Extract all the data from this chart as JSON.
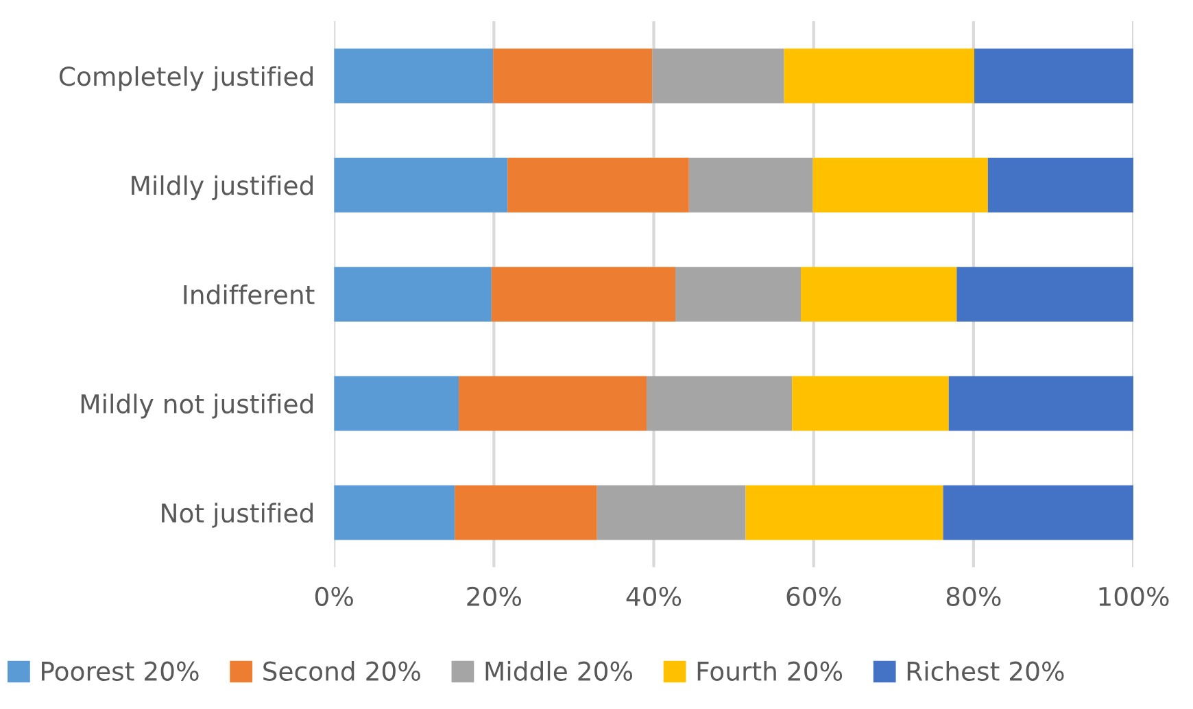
{
  "chart_data": {
    "type": "bar",
    "orientation": "horizontal",
    "stacked": true,
    "categories": [
      "Completely justified",
      "Mildly justified",
      "Indifferent",
      "Mildly not justified",
      "Not justified"
    ],
    "series": [
      {
        "name": "Poorest 20%",
        "color": "#5b9bd5",
        "values": [
          19.9,
          21.7,
          19.7,
          15.6,
          15.1
        ]
      },
      {
        "name": "Second 20%",
        "color": "#ed7d31",
        "values": [
          19.9,
          22.7,
          23.0,
          23.5,
          17.8
        ]
      },
      {
        "name": "Middle 20%",
        "color": "#a5a5a5",
        "values": [
          16.5,
          15.5,
          15.7,
          18.2,
          18.6
        ]
      },
      {
        "name": "Fourth 20%",
        "color": "#ffc000",
        "values": [
          23.8,
          21.9,
          19.5,
          19.6,
          24.7
        ]
      },
      {
        "name": "Richest 20%",
        "color": "#4472c4",
        "values": [
          19.9,
          18.2,
          22.1,
          23.1,
          23.8
        ]
      }
    ],
    "xlim": [
      0,
      100
    ],
    "xticks": [
      {
        "value": 0,
        "label": "0%"
      },
      {
        "value": 20,
        "label": "20%"
      },
      {
        "value": 40,
        "label": "40%"
      },
      {
        "value": 60,
        "label": "60%"
      },
      {
        "value": 80,
        "label": "80%"
      },
      {
        "value": 100,
        "label": "100%"
      }
    ],
    "grid": "x",
    "legend": "bottom"
  }
}
